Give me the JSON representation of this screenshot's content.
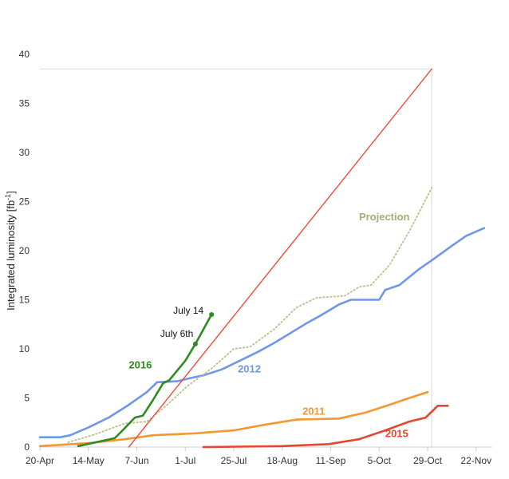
{
  "chart_data": {
    "type": "line",
    "ylabel": "Integrated luminosity [fb",
    "ylabel_sup": "-1",
    "ylabel_end": "]",
    "ylim": [
      0,
      40
    ],
    "y_ticks": [
      0,
      5,
      10,
      15,
      20,
      25,
      30,
      35,
      40
    ],
    "xlim": [
      "2016-04-20",
      "2016-11-30"
    ],
    "x_ticks": [
      {
        "date": "2016-04-20",
        "label": "20-Apr"
      },
      {
        "date": "2016-05-14",
        "label": "14-May"
      },
      {
        "date": "2016-06-07",
        "label": "7-Jun"
      },
      {
        "date": "2016-07-01",
        "label": "1-Jul"
      },
      {
        "date": "2016-07-25",
        "label": "25-Jul"
      },
      {
        "date": "2016-08-18",
        "label": "18-Aug"
      },
      {
        "date": "2016-09-11",
        "label": "11-Sep"
      },
      {
        "date": "2016-10-05",
        "label": "5-Oct"
      },
      {
        "date": "2016-10-29",
        "label": "29-Oct"
      },
      {
        "date": "2016-11-22",
        "label": "22-Nov"
      }
    ],
    "grid": false,
    "series": [
      {
        "name": "2012",
        "color": "#6f96e8",
        "style": "solid",
        "points": [
          [
            "2016-04-20",
            1.0
          ],
          [
            "2016-04-30",
            1.0
          ],
          [
            "2016-05-05",
            1.2
          ],
          [
            "2016-05-14",
            2.0
          ],
          [
            "2016-05-24",
            3.0
          ],
          [
            "2016-06-03",
            4.3
          ],
          [
            "2016-06-12",
            5.6
          ],
          [
            "2016-06-17",
            6.6
          ],
          [
            "2016-06-27",
            6.7
          ],
          [
            "2016-07-03",
            7.0
          ],
          [
            "2016-07-10",
            7.3
          ],
          [
            "2016-07-19",
            7.9
          ],
          [
            "2016-07-28",
            8.8
          ],
          [
            "2016-08-06",
            9.7
          ],
          [
            "2016-08-14",
            10.6
          ],
          [
            "2016-08-22",
            11.6
          ],
          [
            "2016-08-30",
            12.6
          ],
          [
            "2016-09-06",
            13.4
          ],
          [
            "2016-09-15",
            14.5
          ],
          [
            "2016-09-21",
            15.0
          ],
          [
            "2016-10-05",
            15.0
          ],
          [
            "2016-10-08",
            16.0
          ],
          [
            "2016-10-15",
            16.5
          ],
          [
            "2016-10-24",
            18.0
          ],
          [
            "2016-11-02",
            19.3
          ],
          [
            "2016-11-10",
            20.5
          ],
          [
            "2016-11-17",
            21.5
          ],
          [
            "2016-11-26",
            22.3
          ]
        ]
      },
      {
        "name": "2011",
        "color": "#f5962e",
        "style": "solid",
        "points": [
          [
            "2016-04-20",
            0.1
          ],
          [
            "2016-05-14",
            0.4
          ],
          [
            "2016-06-01",
            0.8
          ],
          [
            "2016-06-15",
            1.2
          ],
          [
            "2016-07-06",
            1.4
          ],
          [
            "2016-07-25",
            1.7
          ],
          [
            "2016-08-10",
            2.3
          ],
          [
            "2016-08-25",
            2.8
          ],
          [
            "2016-09-15",
            2.9
          ],
          [
            "2016-09-28",
            3.5
          ],
          [
            "2016-10-10",
            4.3
          ],
          [
            "2016-10-20",
            5.0
          ],
          [
            "2016-10-29",
            5.6
          ]
        ]
      },
      {
        "name": "2015",
        "color": "#e8452c",
        "style": "solid",
        "points": [
          [
            "2016-07-10",
            0.0
          ],
          [
            "2016-08-18",
            0.1
          ],
          [
            "2016-09-10",
            0.3
          ],
          [
            "2016-09-25",
            0.8
          ],
          [
            "2016-10-08",
            1.7
          ],
          [
            "2016-10-20",
            2.6
          ],
          [
            "2016-10-28",
            3.0
          ],
          [
            "2016-11-03",
            4.2
          ],
          [
            "2016-11-08",
            4.2
          ]
        ]
      },
      {
        "name": "Projection",
        "color": "#b9c08a",
        "style": "dotted",
        "points": [
          [
            "2016-05-04",
            0.5
          ],
          [
            "2016-05-16",
            1.2
          ],
          [
            "2016-06-01",
            2.4
          ],
          [
            "2016-06-12",
            2.6
          ],
          [
            "2016-06-22",
            4.3
          ],
          [
            "2016-07-02",
            6.2
          ],
          [
            "2016-07-14",
            8.0
          ],
          [
            "2016-07-25",
            10.0
          ],
          [
            "2016-08-02",
            10.2
          ],
          [
            "2016-08-14",
            12.0
          ],
          [
            "2016-08-25",
            14.2
          ],
          [
            "2016-09-04",
            15.2
          ],
          [
            "2016-09-18",
            15.4
          ],
          [
            "2016-09-25",
            16.3
          ],
          [
            "2016-10-01",
            16.5
          ],
          [
            "2016-10-10",
            18.5
          ],
          [
            "2016-10-20",
            22.0
          ],
          [
            "2016-10-31",
            26.4
          ]
        ]
      },
      {
        "name": "",
        "color": "#f04c3c",
        "style": "solid",
        "points": [
          [
            "2016-06-03",
            0.0
          ],
          [
            "2016-10-31",
            38.5
          ]
        ]
      },
      {
        "name": "2016",
        "color": "#2e8b22",
        "style": "solid",
        "points": [
          [
            "2016-05-09",
            0.1
          ],
          [
            "2016-05-18",
            0.5
          ],
          [
            "2016-05-27",
            0.9
          ],
          [
            "2016-05-30",
            1.5
          ],
          [
            "2016-06-06",
            3.0
          ],
          [
            "2016-06-10",
            3.2
          ],
          [
            "2016-06-15",
            4.8
          ],
          [
            "2016-06-20",
            6.5
          ],
          [
            "2016-06-23",
            6.8
          ],
          [
            "2016-07-01",
            8.8
          ],
          [
            "2016-07-06",
            10.5
          ],
          [
            "2016-07-14",
            13.5
          ]
        ],
        "markers": [
          [
            "2016-07-06",
            10.5
          ],
          [
            "2016-07-14",
            13.5
          ]
        ]
      }
    ],
    "annotations": [
      {
        "text": "July 14",
        "date": "2016-07-14",
        "value": 13.5
      },
      {
        "text": "July 6th",
        "date": "2016-07-06",
        "value": 10.5
      }
    ],
    "reference_lines": {
      "y": 38.5,
      "x": "2016-10-31"
    }
  }
}
